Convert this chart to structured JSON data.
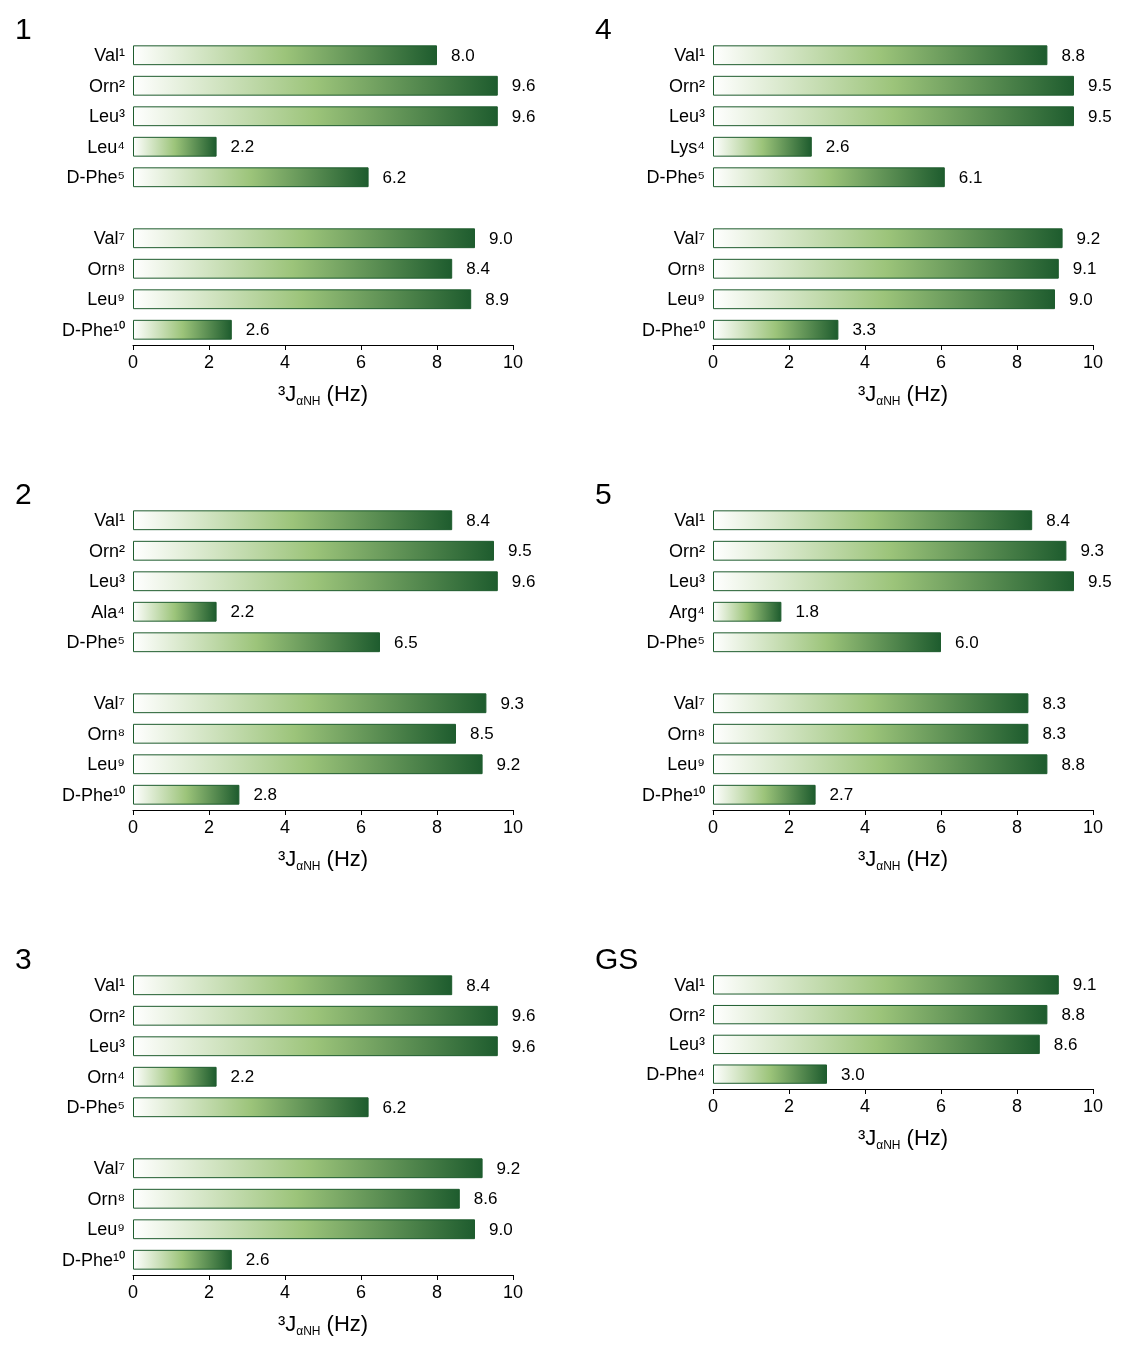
{
  "chart_data": [
    {
      "type": "bar",
      "orientation": "horizontal",
      "title": "1",
      "xlabel": "³J$_{αNH}$ (Hz)",
      "categories": [
        "Val¹",
        "Orn²",
        "Leu³",
        "Leu⁴",
        "D-Phe⁵",
        null,
        "Val⁷",
        "Orn⁸",
        "Leu⁹",
        "D-Phe¹⁰"
      ],
      "values": [
        8.0,
        9.6,
        9.6,
        2.2,
        6.2,
        null,
        9.0,
        8.4,
        8.9,
        2.6
      ],
      "value_labels": [
        "8.0",
        "9.6",
        "9.6",
        "2.2",
        "6.2",
        null,
        "9.0",
        "8.4",
        "8.9",
        "2.6"
      ],
      "color": "#1e5c2e",
      "xlim": [
        0,
        10
      ],
      "xticks": [
        0,
        2,
        4,
        6,
        8,
        10
      ],
      "grid": false
    },
    {
      "type": "bar",
      "orientation": "horizontal",
      "title": "4",
      "xlabel": "³J$_{αNH}$ (Hz)",
      "categories": [
        "Val¹",
        "Orn²",
        "Leu³",
        "Lys⁴",
        "D-Phe⁵",
        null,
        "Val⁷",
        "Orn⁸",
        "Leu⁹",
        "D-Phe¹⁰"
      ],
      "values": [
        8.8,
        9.5,
        9.5,
        2.6,
        6.1,
        null,
        9.2,
        9.1,
        9.0,
        3.3
      ],
      "value_labels": [
        "8.8",
        "9.5",
        "9.5",
        "2.6",
        "6.1",
        null,
        "9.2",
        "9.1",
        "9.0",
        "3.3"
      ],
      "color": "#1e5c2e",
      "xlim": [
        0,
        10
      ],
      "xticks": [
        0,
        2,
        4,
        6,
        8,
        10
      ],
      "grid": false
    },
    {
      "type": "bar",
      "orientation": "horizontal",
      "title": "2",
      "xlabel": "³J$_{αNH}$ (Hz)",
      "categories": [
        "Val¹",
        "Orn²",
        "Leu³",
        "Ala⁴",
        "D-Phe⁵",
        null,
        "Val⁷",
        "Orn⁸",
        "Leu⁹",
        "D-Phe¹⁰"
      ],
      "values": [
        8.4,
        9.5,
        9.6,
        2.2,
        6.5,
        null,
        9.3,
        8.5,
        9.2,
        2.8
      ],
      "value_labels": [
        "8.4",
        "9.5",
        "9.6",
        "2.2",
        "6.5",
        null,
        "9.3",
        "8.5",
        "9.2",
        "2.8"
      ],
      "color": "#1e5c2e",
      "xlim": [
        0,
        10
      ],
      "xticks": [
        0,
        2,
        4,
        6,
        8,
        10
      ],
      "grid": false
    },
    {
      "type": "bar",
      "orientation": "horizontal",
      "title": "5",
      "xlabel": "³J$_{αNH}$ (Hz)",
      "categories": [
        "Val¹",
        "Orn²",
        "Leu³",
        "Arg⁴",
        "D-Phe⁵",
        null,
        "Val⁷",
        "Orn⁸",
        "Leu⁹",
        "D-Phe¹⁰"
      ],
      "values": [
        8.4,
        9.3,
        9.5,
        1.8,
        6.0,
        null,
        8.3,
        8.3,
        8.8,
        2.7
      ],
      "value_labels": [
        "8.4",
        "9.3",
        "9.5",
        "1.8",
        "6.0",
        null,
        "8.3",
        "8.3",
        "8.8",
        "2.7"
      ],
      "color": "#1e5c2e",
      "xlim": [
        0,
        10
      ],
      "xticks": [
        0,
        2,
        4,
        6,
        8,
        10
      ],
      "grid": false
    },
    {
      "type": "bar",
      "orientation": "horizontal",
      "title": "3",
      "xlabel": "³J$_{αNH}$ (Hz)",
      "categories": [
        "Val¹",
        "Orn²",
        "Leu³",
        "Orn⁴",
        "D-Phe⁵",
        null,
        "Val⁷",
        "Orn⁸",
        "Leu⁹",
        "D-Phe¹⁰"
      ],
      "values": [
        8.4,
        9.6,
        9.6,
        2.2,
        6.2,
        null,
        9.2,
        8.6,
        9.0,
        2.6
      ],
      "value_labels": [
        "8.4",
        "9.6",
        "9.6",
        "2.2",
        "6.2",
        null,
        "9.2",
        "8.6",
        "9.0",
        "2.6"
      ],
      "color": "#1e5c2e",
      "xlim": [
        0,
        10
      ],
      "xticks": [
        0,
        2,
        4,
        6,
        8,
        10
      ],
      "grid": false
    },
    {
      "type": "bar",
      "orientation": "horizontal",
      "title": "GS",
      "xlabel": "³J$_{αNH}$ (Hz)",
      "categories": [
        "Val¹",
        "Orn²",
        "Leu³",
        "D-Phe⁴"
      ],
      "values": [
        9.1,
        8.8,
        8.6,
        3.0
      ],
      "value_labels": [
        "9.1",
        "8.8",
        "8.6",
        "3.0"
      ],
      "color": "#1e5c2e",
      "xlim": [
        0,
        10
      ],
      "xticks": [
        0,
        2,
        4,
        6,
        8,
        10
      ],
      "grid": false
    }
  ]
}
